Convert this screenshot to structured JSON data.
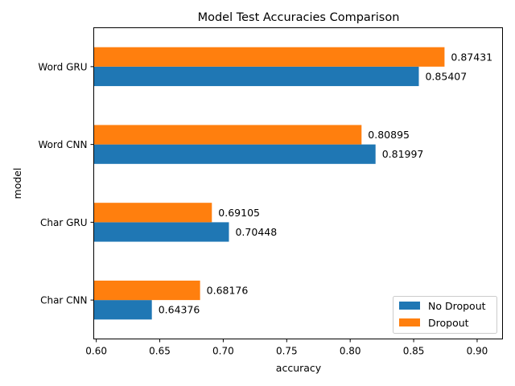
{
  "chart_data": {
    "type": "bar",
    "orientation": "horizontal",
    "title": "Model Test Accuracies Comparison",
    "xlabel": "accuracy",
    "ylabel": "model",
    "xlim": [
      0.598,
      0.92
    ],
    "xticks": [
      0.6,
      0.65,
      0.7,
      0.75,
      0.8,
      0.85,
      0.9
    ],
    "xtick_labels": [
      "0.60",
      "0.65",
      "0.70",
      "0.75",
      "0.80",
      "0.85",
      "0.90"
    ],
    "categories": [
      "Char CNN",
      "Char GRU",
      "Word CNN",
      "Word GRU"
    ],
    "series": [
      {
        "name": "No Dropout",
        "color": "#1f77b4",
        "values": [
          0.64376,
          0.70448,
          0.81997,
          0.85407
        ],
        "labels": [
          "0.64376",
          "0.70448",
          "0.81997",
          "0.85407"
        ]
      },
      {
        "name": "Dropout",
        "color": "#ff7f0e",
        "values": [
          0.68176,
          0.69105,
          0.80895,
          0.87431
        ],
        "labels": [
          "0.68176",
          "0.69105",
          "0.80895",
          "0.87431"
        ]
      }
    ],
    "legend": {
      "placement": "lower-right",
      "entries": [
        "No Dropout",
        "Dropout"
      ]
    },
    "grid": false
  }
}
